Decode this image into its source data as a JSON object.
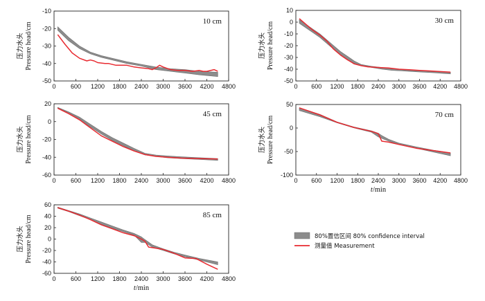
{
  "chart_data": [
    {
      "type": "line",
      "depth_label": "10 cm",
      "ylabel_cn": "压力水头",
      "ylabel_en": "Pressure head/cm",
      "xlabel": "",
      "ylim": [
        -50,
        -10
      ],
      "yticks": [
        -10,
        -20,
        -30,
        -40,
        -50
      ],
      "xlim": [
        0,
        4800
      ],
      "xticks": [
        0,
        600,
        1200,
        1800,
        2400,
        3000,
        3600,
        4200,
        4800
      ],
      "show_xticklabels": true,
      "ci_lower": {
        "x": [
          100,
          400,
          700,
          1000,
          1300,
          1600,
          2000,
          2400,
          2800,
          3200,
          3600,
          4000,
          4500
        ],
        "y": [
          -21,
          -27,
          -31.5,
          -34.5,
          -36.5,
          -38,
          -40,
          -41.5,
          -43.5,
          -44.5,
          -45.5,
          -46.5,
          -47.5
        ]
      },
      "ci_upper": {
        "x": [
          100,
          400,
          700,
          1000,
          1300,
          1600,
          2000,
          2400,
          2800,
          3200,
          3600,
          4000,
          4500
        ],
        "y": [
          -19,
          -25,
          -30,
          -33.5,
          -35.5,
          -37,
          -39,
          -40.5,
          -42,
          -43,
          -43.5,
          -44.5,
          -45
        ]
      },
      "measurement": {
        "x": [
          100,
          300,
          500,
          700,
          900,
          1000,
          1100,
          1200,
          1400,
          1500,
          1700,
          1800,
          2000,
          2200,
          2400,
          2600,
          2700,
          2800,
          2900,
          3000,
          3200,
          3400,
          3600,
          3800,
          4000,
          4100,
          4200,
          4400,
          4500
        ],
        "y": [
          -23.5,
          -29,
          -34,
          -37,
          -38.5,
          -38,
          -38.5,
          -39.5,
          -40,
          -40,
          -41,
          -41,
          -41,
          -42,
          -42.5,
          -43,
          -43.5,
          -42.5,
          -41,
          -42,
          -43.5,
          -44,
          -44,
          -44.5,
          -44,
          -44.5,
          -44.5,
          -43.5,
          -44.5
        ]
      }
    },
    {
      "type": "line",
      "depth_label": "30 cm",
      "ylabel_cn": "压力水头",
      "ylabel_en": "Pressure head/cm",
      "xlabel": "",
      "ylim": [
        -50,
        10
      ],
      "yticks": [
        10,
        0,
        -10,
        -20,
        -30,
        -40,
        -50
      ],
      "xlim": [
        0,
        4800
      ],
      "xticks": [
        0,
        600,
        1200,
        1800,
        2400,
        3000,
        3600,
        4200,
        4800
      ],
      "show_xticklabels": true,
      "ci_lower": {
        "x": [
          100,
          300,
          500,
          700,
          900,
          1100,
          1300,
          1500,
          1700,
          1900,
          2200,
          2500,
          2800,
          3100,
          3400,
          3700,
          4000,
          4500
        ],
        "y": [
          -1,
          -5,
          -9,
          -13,
          -18,
          -23,
          -28,
          -32,
          -35,
          -37,
          -38.5,
          -40,
          -41,
          -41.5,
          -42,
          -42.5,
          -43,
          -44
        ]
      },
      "ci_upper": {
        "x": [
          100,
          300,
          500,
          700,
          900,
          1100,
          1300,
          1500,
          1700,
          1900,
          2200,
          2500,
          2800,
          3100,
          3400,
          3700,
          4000,
          4500
        ],
        "y": [
          2,
          -2,
          -6,
          -10,
          -15,
          -20,
          -25,
          -29,
          -33,
          -36,
          -37.5,
          -38.5,
          -39.5,
          -40.5,
          -41,
          -41.5,
          -42,
          -42.5
        ]
      },
      "measurement": {
        "x": [
          100,
          300,
          500,
          700,
          900,
          1100,
          1300,
          1500,
          1700,
          1900,
          2100,
          2400,
          2700,
          3000,
          3300,
          3600,
          3900,
          4200,
          4500
        ],
        "y": [
          3,
          -2,
          -7,
          -11,
          -16,
          -23,
          -28,
          -32,
          -35.5,
          -37,
          -38,
          -38.5,
          -39,
          -40,
          -40.5,
          -41,
          -41.5,
          -42,
          -42.5
        ]
      }
    },
    {
      "type": "line",
      "depth_label": "45 cm",
      "ylabel_cn": "压力水头",
      "ylabel_en": "Pressure head/cm",
      "xlabel": "",
      "ylim": [
        -60,
        20
      ],
      "yticks": [
        20,
        0,
        -20,
        -40,
        -60
      ],
      "xlim": [
        0,
        4800
      ],
      "xticks": [
        0,
        600,
        1200,
        1800,
        2400,
        3000,
        3600,
        4200,
        4800
      ],
      "show_xticklabels": true,
      "ci_lower": {
        "x": [
          100,
          400,
          700,
          1000,
          1300,
          1600,
          1900,
          2200,
          2500,
          2800,
          3100,
          3500,
          4000,
          4500
        ],
        "y": [
          15,
          10,
          3,
          -6,
          -14,
          -21,
          -27,
          -33,
          -37.5,
          -39,
          -40.5,
          -41.5,
          -42.5,
          -43.5
        ]
      },
      "ci_upper": {
        "x": [
          100,
          400,
          700,
          1000,
          1300,
          1600,
          1900,
          2200,
          2500,
          2800,
          3100,
          3500,
          4000,
          4500
        ],
        "y": [
          16,
          11,
          5,
          -3,
          -11,
          -18,
          -24,
          -30,
          -35.5,
          -37.5,
          -38.5,
          -39.5,
          -40.5,
          -41.5
        ]
      },
      "measurement": {
        "x": [
          100,
          400,
          700,
          1000,
          1300,
          1600,
          1900,
          2200,
          2500,
          2800,
          3100,
          3500,
          4000,
          4500
        ],
        "y": [
          15,
          9,
          2,
          -7,
          -16,
          -22,
          -28,
          -33,
          -37,
          -39,
          -40,
          -41,
          -41.5,
          -42
        ]
      }
    },
    {
      "type": "line",
      "depth_label": "70 cm",
      "ylabel_cn": "压力水头",
      "ylabel_en": "Pressure head/cm",
      "xlabel": "t/min",
      "ylim": [
        -100,
        50
      ],
      "yticks": [
        50,
        0,
        -50,
        -100
      ],
      "xlim": [
        0,
        4800
      ],
      "xticks": [
        0,
        600,
        1200,
        1800,
        2400,
        3000,
        3600,
        4200,
        4800
      ],
      "show_xticklabels": true,
      "ci_lower": {
        "x": [
          100,
          700,
          1200,
          1700,
          2200,
          2400,
          2500,
          2700,
          3000,
          3500,
          4000,
          4500
        ],
        "y": [
          37,
          24,
          11,
          0,
          -9,
          -19,
          -22,
          -28,
          -35,
          -43,
          -51,
          -59
        ]
      },
      "ci_upper": {
        "x": [
          100,
          700,
          1200,
          1700,
          2200,
          2400,
          2500,
          2700,
          3000,
          3500,
          4000,
          4500
        ],
        "y": [
          43,
          29,
          13,
          2,
          -6,
          -11,
          -16,
          -24,
          -32,
          -40,
          -47,
          -53
        ]
      },
      "measurement": {
        "x": [
          100,
          700,
          1200,
          1700,
          2200,
          2400,
          2500,
          2700,
          3000,
          3500,
          4000,
          4500
        ],
        "y": [
          43,
          28,
          12,
          1,
          -7,
          -12,
          -28,
          -30,
          -35,
          -43,
          -48,
          -53
        ]
      }
    },
    {
      "type": "line",
      "depth_label": "85 cm",
      "ylabel_cn": "压力水头",
      "ylabel_en": "Pressure head/cm",
      "xlabel": "t/min",
      "ylim": [
        -60,
        60
      ],
      "yticks": [
        60,
        40,
        20,
        0,
        -20,
        -40,
        -60
      ],
      "xlim": [
        0,
        4800
      ],
      "xticks": [
        0,
        600,
        1200,
        1800,
        2400,
        3000,
        3600,
        4200,
        4800
      ],
      "show_xticklabels": true,
      "ci_lower": {
        "x": [
          100,
          400,
          700,
          1000,
          1300,
          1600,
          1900,
          2200,
          2400,
          2500,
          2700,
          3000,
          3300,
          3600,
          4000,
          4500
        ],
        "y": [
          54,
          48,
          41,
          34,
          26,
          19,
          13,
          7,
          -6,
          -6,
          -14,
          -20,
          -26,
          -31,
          -37,
          -45
        ]
      },
      "ci_upper": {
        "x": [
          100,
          400,
          700,
          1000,
          1300,
          1600,
          1900,
          2200,
          2400,
          2500,
          2700,
          3000,
          3300,
          3600,
          4000,
          4500
        ],
        "y": [
          56,
          50,
          44,
          37,
          30,
          23,
          16,
          10,
          4,
          -1,
          -10,
          -17,
          -23,
          -28,
          -34,
          -40
        ]
      },
      "measurement": {
        "x": [
          100,
          400,
          700,
          1000,
          1300,
          1600,
          1900,
          2200,
          2400,
          2500,
          2600,
          2700,
          3000,
          3300,
          3600,
          3900,
          4200,
          4500
        ],
        "y": [
          55,
          49,
          42,
          34,
          25,
          18,
          11,
          6,
          0,
          -4,
          -14,
          -15,
          -18,
          -25,
          -33,
          -34,
          -44,
          -53
        ]
      }
    }
  ],
  "legend": {
    "ci_label": "80%置信区间  80% confidence interval",
    "measurement_label": "测量值  Measurement",
    "ci_color": "#8c8c8c",
    "measurement_color": "#e8292f"
  }
}
